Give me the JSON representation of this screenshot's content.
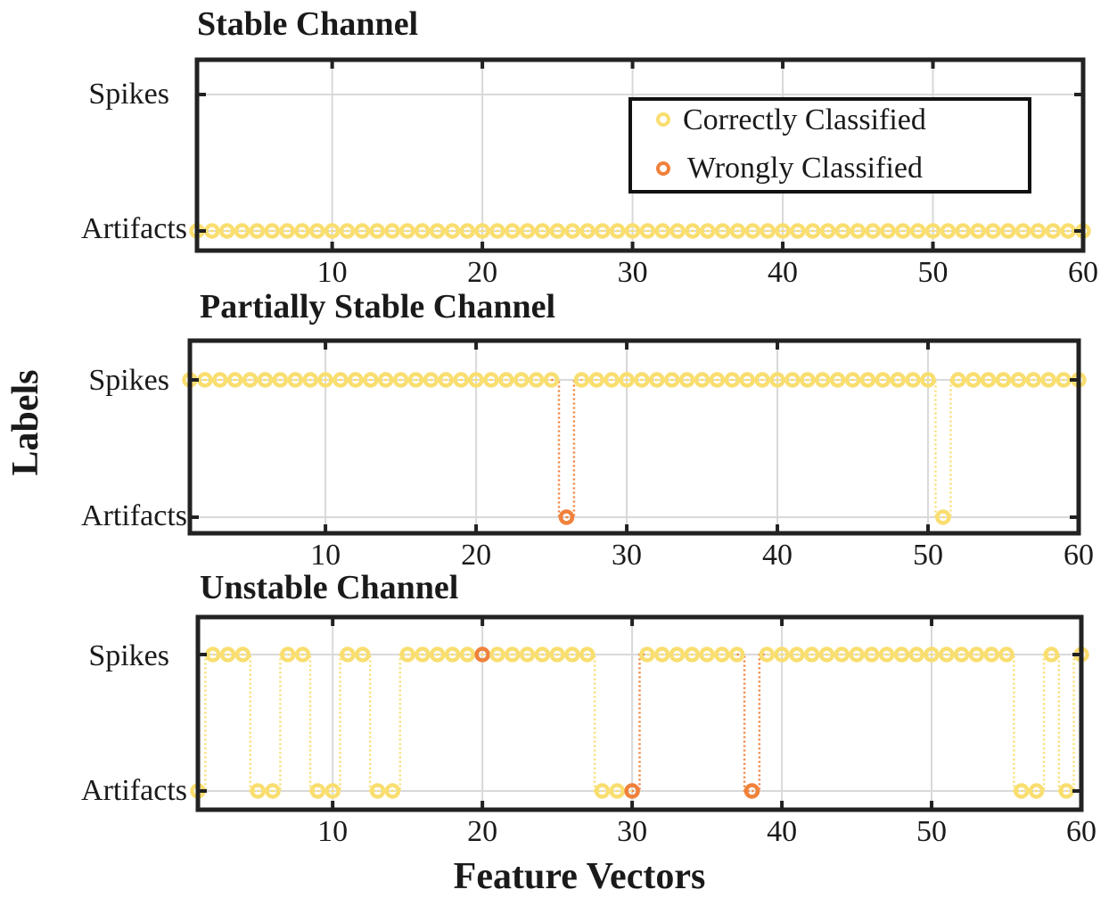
{
  "figure": {
    "ylabel": "Labels",
    "xlabel": "Feature Vectors"
  },
  "legend": {
    "correct": "Correctly Classified",
    "wrong": "Wrongly Classified"
  },
  "colors": {
    "correct": "#f9de70",
    "wrong": "#f0813b",
    "axes": "#222222",
    "grid": "#d9d9d9"
  },
  "chart_data": [
    {
      "type": "scatter",
      "title": "Stable Channel",
      "xlim": [
        1,
        60
      ],
      "xticks": [
        10,
        20,
        30,
        40,
        50,
        60
      ],
      "yticks": [
        "Artifacts",
        "Spikes"
      ],
      "grid": true,
      "legend_position": "top-right",
      "series": [
        {
          "name": "Correctly Classified",
          "values": [
            0,
            0,
            0,
            0,
            0,
            0,
            0,
            0,
            0,
            0,
            0,
            0,
            0,
            0,
            0,
            0,
            0,
            0,
            0,
            0,
            0,
            0,
            0,
            0,
            0,
            0,
            0,
            0,
            0,
            0,
            0,
            0,
            0,
            0,
            0,
            0,
            0,
            0,
            0,
            0,
            0,
            0,
            0,
            0,
            0,
            0,
            0,
            0,
            0,
            0,
            0,
            0,
            0,
            0,
            0,
            0,
            0,
            0,
            0,
            0
          ]
        }
      ],
      "wrong_indices": []
    },
    {
      "type": "scatter",
      "title": "Partially Stable Channel",
      "xlim": [
        1,
        60
      ],
      "xticks": [
        10,
        20,
        30,
        40,
        50,
        60
      ],
      "yticks": [
        "Artifacts",
        "Spikes"
      ],
      "grid": true,
      "series": [
        {
          "name": "Correctly Classified",
          "values": [
            1,
            1,
            1,
            1,
            1,
            1,
            1,
            1,
            1,
            1,
            1,
            1,
            1,
            1,
            1,
            1,
            1,
            1,
            1,
            1,
            1,
            1,
            1,
            1,
            1,
            0,
            1,
            1,
            1,
            1,
            1,
            1,
            1,
            1,
            1,
            1,
            1,
            1,
            1,
            1,
            1,
            1,
            1,
            1,
            1,
            1,
            1,
            1,
            1,
            1,
            0,
            1,
            1,
            1,
            1,
            1,
            1,
            1,
            1,
            1
          ]
        }
      ],
      "wrong_indices": [
        26
      ]
    },
    {
      "type": "scatter",
      "title": "Unstable Channel",
      "xlim": [
        1,
        60
      ],
      "xticks": [
        10,
        20,
        30,
        40,
        50,
        60
      ],
      "yticks": [
        "Artifacts",
        "Spikes"
      ],
      "grid": true,
      "series": [
        {
          "name": "Correctly Classified",
          "values": [
            0,
            1,
            1,
            1,
            0,
            0,
            1,
            1,
            0,
            0,
            1,
            1,
            0,
            0,
            1,
            1,
            1,
            1,
            1,
            1,
            1,
            1,
            1,
            1,
            1,
            1,
            1,
            0,
            0,
            0,
            1,
            1,
            1,
            1,
            1,
            1,
            1,
            0,
            1,
            1,
            1,
            1,
            1,
            1,
            1,
            1,
            1,
            1,
            1,
            1,
            1,
            1,
            1,
            1,
            1,
            0,
            0,
            1,
            0,
            1
          ]
        }
      ],
      "wrong_indices": [
        20,
        30,
        38
      ]
    }
  ]
}
